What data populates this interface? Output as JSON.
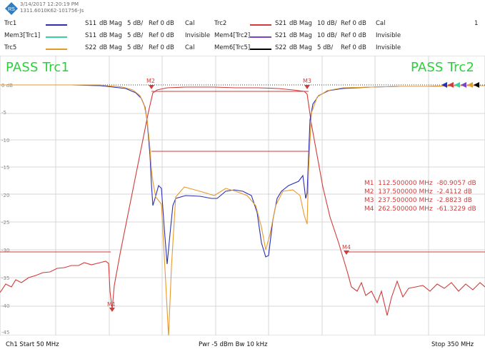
{
  "header": {
    "timestamp": "3/14/2017 12:20:19 PM",
    "instrument": "1311.6010K62-101756-Js",
    "channel_indicator": "1"
  },
  "colors": {
    "trc1": "#2b2fb2",
    "mem3": "#36d19c",
    "trc5": "#e69a2e",
    "trc2": "#d23b3b",
    "mem4": "#7b44c8",
    "mem6": "#000000",
    "pass": "#2ad23a",
    "grid": "#d7d7d7"
  },
  "traces": [
    {
      "name": "Trc1",
      "meas": "S11",
      "format": "dB Mag",
      "scale": "5 dB/",
      "ref": "Ref 0 dB",
      "state": "Cal"
    },
    {
      "name": "Mem3[Trc1]",
      "meas": "S11",
      "format": "dB Mag",
      "scale": "5 dB/",
      "ref": "Ref 0 dB",
      "state": "Invisible"
    },
    {
      "name": "Trc5",
      "meas": "S22",
      "format": "dB Mag",
      "scale": "5 dB/",
      "ref": "Ref 0 dB",
      "state": "Cal"
    },
    {
      "name": "Trc2",
      "meas": "S21",
      "format": "dB Mag",
      "scale": "10 dB/",
      "ref": "Ref 0 dB",
      "state": "Cal"
    },
    {
      "name": "Mem4[Trc2]",
      "meas": "S21",
      "format": "dB Mag",
      "scale": "10 dB/",
      "ref": "Ref 0 dB",
      "state": "Invisible"
    },
    {
      "name": "Mem6[Trc5]",
      "meas": "S22",
      "format": "dB Mag",
      "scale": "5 dB/",
      "ref": "Ref 0 dB",
      "state": "Invisible"
    }
  ],
  "pass": {
    "left": "PASS  Trc1",
    "right": "PASS  Trc2"
  },
  "y_ticks": [
    "0 dB",
    "-5",
    "-10",
    "-15",
    "-20",
    "-25",
    "-30",
    "-35",
    "-40",
    "-45"
  ],
  "markers_table": [
    {
      "id": "M1",
      "freq": "112.500000 MHz",
      "val": "-80.9057 dB"
    },
    {
      "id": "M2",
      "freq": "137.500000 MHz",
      "val": "-2.4112 dB"
    },
    {
      "id": "M3",
      "freq": "237.500000 MHz",
      "val": "-2.8823 dB"
    },
    {
      "id": "M4",
      "freq": "262.500000 MHz",
      "val": "-61.3229 dB"
    }
  ],
  "marker_labels": [
    "M1",
    "M2",
    "M3",
    "M4"
  ],
  "footer": {
    "start": "Ch1  Start  50 MHz",
    "mid": "Pwr  -5 dBm  Bw  10 kHz",
    "stop": "Stop  350 MHz"
  }
}
